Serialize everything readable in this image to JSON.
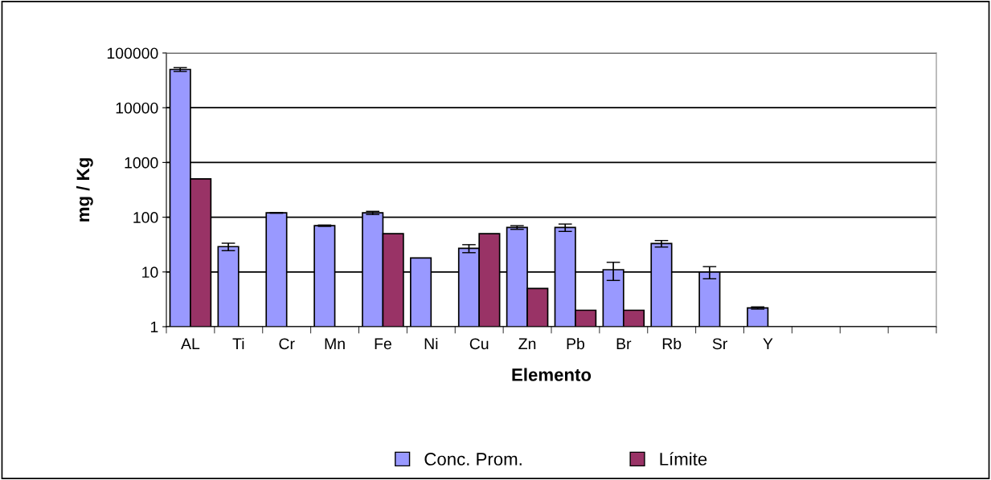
{
  "chart_data": {
    "type": "bar",
    "xlabel": "Elemento",
    "ylabel": "mg / Kg",
    "categories": [
      "AL",
      "Ti",
      "Cr",
      "Mn",
      "Fe",
      "Ni",
      "Cu",
      "Zn",
      "Pb",
      "Br",
      "Rb",
      "Sr",
      "Y",
      null,
      null,
      null
    ],
    "series": [
      {
        "name": "Conc. Prom.",
        "color": "#9999ff",
        "values": [
          50000,
          29,
          120,
          70,
          120,
          18,
          27,
          65,
          65,
          11,
          33,
          10,
          2.2,
          null,
          null,
          null
        ],
        "errors": [
          4000,
          4.5,
          2,
          2,
          8,
          null,
          4.5,
          5,
          10,
          4,
          4.5,
          2.5,
          0.1,
          null,
          null,
          null
        ]
      },
      {
        "name": "Límite",
        "color": "#993366",
        "values": [
          500,
          null,
          null,
          null,
          50,
          null,
          50,
          5,
          2,
          2,
          null,
          null,
          null,
          null,
          null,
          null
        ]
      }
    ],
    "log": "y",
    "ylim": [
      1,
      100000
    ],
    "yticks": [
      1,
      10,
      100,
      1000,
      10000,
      100000
    ],
    "grid": "y",
    "legend": "bottom"
  }
}
